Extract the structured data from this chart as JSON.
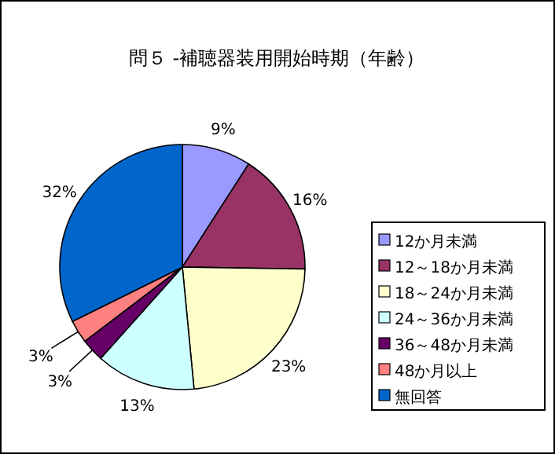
{
  "chart_data": {
    "type": "pie",
    "title": "問５ -補聴器装用開始時期（年齢）",
    "categories": [
      "12か月未満",
      "12～18か月未満",
      "18～24か月未満",
      "24～36か月未満",
      "36～48か月未満",
      "48か月以上",
      "無回答"
    ],
    "values": [
      9,
      16,
      23,
      13,
      3,
      3,
      32
    ],
    "value_labels": [
      "9%",
      "16%",
      "23%",
      "13%",
      "3%",
      "3%",
      "32%"
    ],
    "colors": [
      "#9999ff",
      "#993366",
      "#ffffcc",
      "#ccffff",
      "#660066",
      "#ff8080",
      "#0066cc"
    ],
    "legend": "right"
  }
}
